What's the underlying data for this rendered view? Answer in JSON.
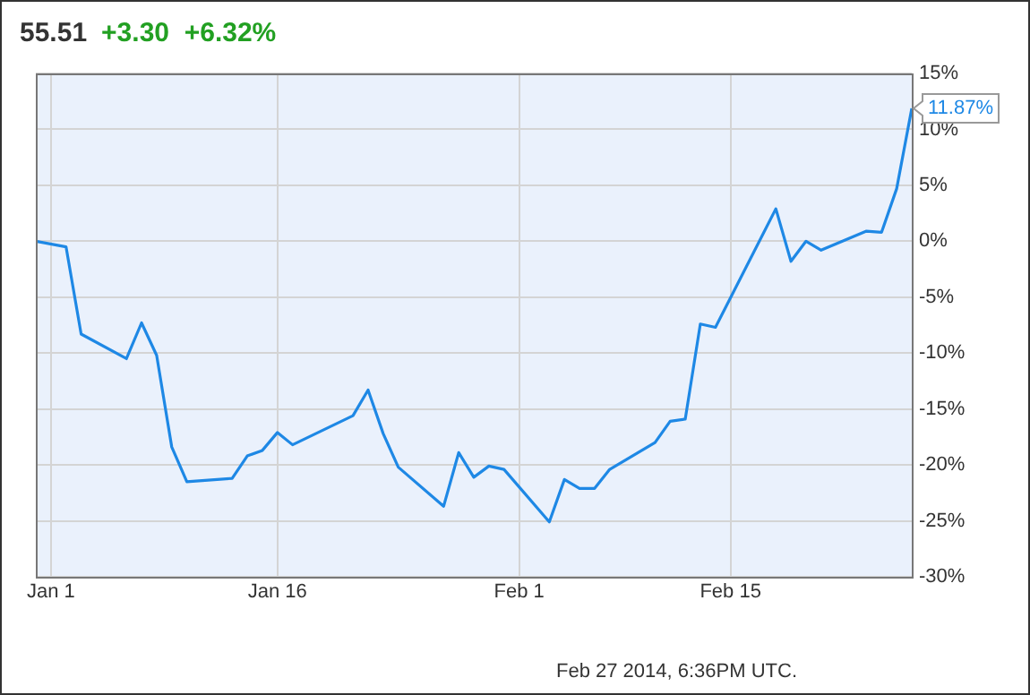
{
  "chart_data": {
    "type": "line",
    "title": "55.51",
    "subtitle": "+3.30  +6.32%",
    "x": [
      "2013-12-31",
      "2014-01-02",
      "2014-01-03",
      "2014-01-06",
      "2014-01-07",
      "2014-01-08",
      "2014-01-09",
      "2014-01-10",
      "2014-01-13",
      "2014-01-14",
      "2014-01-15",
      "2014-01-16",
      "2014-01-17",
      "2014-01-21",
      "2014-01-22",
      "2014-01-23",
      "2014-01-24",
      "2014-01-27",
      "2014-01-28",
      "2014-01-29",
      "2014-01-30",
      "2014-01-31",
      "2014-02-03",
      "2014-02-04",
      "2014-02-05",
      "2014-02-06",
      "2014-02-07",
      "2014-02-10",
      "2014-02-11",
      "2014-02-12",
      "2014-02-13",
      "2014-02-14",
      "2014-02-18",
      "2014-02-19",
      "2014-02-20",
      "2014-02-21",
      "2014-02-24",
      "2014-02-25",
      "2014-02-26",
      "2014-02-27"
    ],
    "series": [
      {
        "color": "#1e88e5",
        "values": [
          0,
          -0.5,
          -8.3,
          -10.5,
          -7.3,
          -10.2,
          -18.4,
          -21.5,
          -21.2,
          -19.2,
          -18.7,
          -17.1,
          -18.2,
          -15.6,
          -13.3,
          -17.2,
          -20.2,
          -23.7,
          -18.9,
          -21.1,
          -20.1,
          -20.4,
          -25.1,
          -21.3,
          -22.1,
          -22.1,
          -20.4,
          -18.0,
          -16.1,
          -15.9,
          -7.4,
          -7.7,
          2.9,
          -1.8,
          0.0,
          -0.8,
          0.9,
          0.8,
          4.7,
          11.87
        ]
      }
    ],
    "xlim": [
      "2013-12-31",
      "2014-02-27"
    ],
    "xticks": [
      {
        "value": "2014-01-01",
        "label": "Jan 1"
      },
      {
        "value": "2014-01-16",
        "label": "Jan 16"
      },
      {
        "value": "2014-02-01",
        "label": "Feb 1"
      },
      {
        "value": "2014-02-15",
        "label": "Feb 15"
      }
    ],
    "ylim": [
      -30,
      15
    ],
    "yticks": [
      {
        "value": -30,
        "label": "-30%"
      },
      {
        "value": -25,
        "label": "-25%"
      },
      {
        "value": -20,
        "label": "-20%"
      },
      {
        "value": -15,
        "label": "-15%"
      },
      {
        "value": -10,
        "label": "-10%"
      },
      {
        "value": -5,
        "label": "-5%"
      },
      {
        "value": 0,
        "label": "0%"
      },
      {
        "value": 5,
        "label": "5%"
      },
      {
        "value": 10,
        "label": "10%"
      },
      {
        "value": 15,
        "label": "15%"
      }
    ],
    "grid": true,
    "legend": false,
    "annotations": [
      {
        "text": "11.87%",
        "x": "2014-02-27",
        "y": 11.87
      },
      "Feb 27 2014, 6:36PM UTC."
    ]
  }
}
